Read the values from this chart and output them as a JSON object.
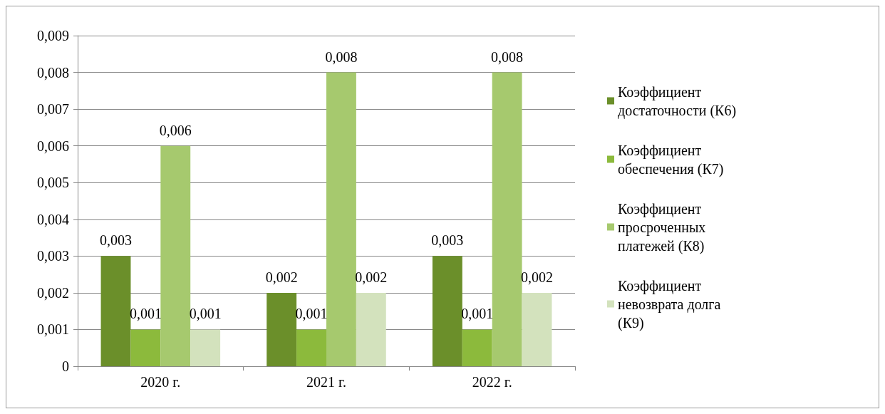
{
  "chart_data": {
    "type": "bar",
    "categories": [
      "2020 г.",
      "2021 г.",
      "2022 г."
    ],
    "series": [
      {
        "name": "Коэффициент достаточности (К6)",
        "color": "#6b8f2a",
        "values": [
          0.003,
          0.002,
          0.003
        ],
        "value_labels": [
          "0,003",
          "0,002",
          "0,003"
        ]
      },
      {
        "name": "Коэффициент обеспечения (К7)",
        "color": "#8cba3c",
        "values": [
          0.001,
          0.001,
          0.001
        ],
        "value_labels": [
          "0,001",
          "0,001",
          "0,001"
        ]
      },
      {
        "name": "Коэффициент просроченных платежей (К8)",
        "color": "#a6c96e",
        "values": [
          0.006,
          0.008,
          0.008
        ],
        "value_labels": [
          "0,006",
          "0,008",
          "0,008"
        ]
      },
      {
        "name": "Коэффициент невозврата долга (К9)",
        "color": "#d3e2bd",
        "values": [
          0.001,
          0.002,
          0.002
        ],
        "value_labels": [
          "0,001",
          "0,002",
          "0,002"
        ]
      }
    ],
    "ylim": [
      0,
      0.009
    ],
    "yticks": [
      {
        "value": 0,
        "label": "0"
      },
      {
        "value": 0.001,
        "label": "0,001"
      },
      {
        "value": 0.002,
        "label": "0,002"
      },
      {
        "value": 0.003,
        "label": "0,003"
      },
      {
        "value": 0.004,
        "label": "0,004"
      },
      {
        "value": 0.005,
        "label": "0,005"
      },
      {
        "value": 0.006,
        "label": "0,006"
      },
      {
        "value": 0.007,
        "label": "0,007"
      },
      {
        "value": 0.008,
        "label": "0,008"
      },
      {
        "value": 0.009,
        "label": "0,009"
      }
    ],
    "grid": "y",
    "legend": "right"
  }
}
